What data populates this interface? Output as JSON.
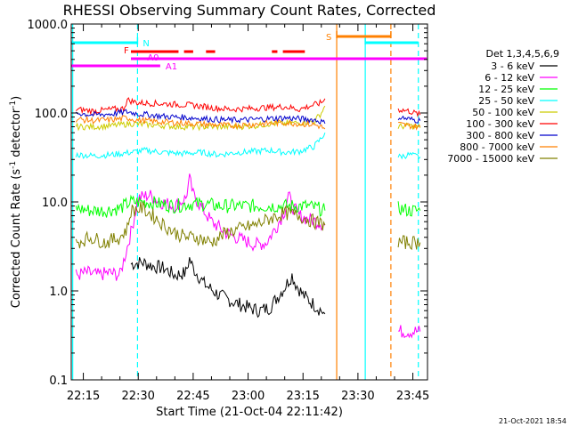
{
  "chart_data": {
    "type": "line",
    "title": "RHESSI Observing Summary Count Rates, Corrected",
    "xlabel": "Start Time (21-Oct-04 22:11:42)",
    "ylabel_main": "Corrected Count Rate (s",
    "ylabel_sup": "-1",
    "ylabel_end": " detector",
    "ylabel_tail": ")",
    "yscale": "log",
    "xlim_min": [
      11.7,
      109.0
    ],
    "ylim": [
      0.1,
      1000
    ],
    "x_ticks": [
      {
        "t": 15,
        "label": "22:15"
      },
      {
        "t": 30,
        "label": "22:30"
      },
      {
        "t": 45,
        "label": "22:45"
      },
      {
        "t": 60,
        "label": "23:00"
      },
      {
        "t": 75,
        "label": "23:15"
      },
      {
        "t": 90,
        "label": "23:30"
      },
      {
        "t": 105,
        "label": "23:45"
      }
    ],
    "y_ticks": [
      {
        "v": 1000,
        "label": "1000.0"
      },
      {
        "v": 100,
        "label": "100.0"
      },
      {
        "v": 10,
        "label": "10.0"
      },
      {
        "v": 1,
        "label": "1.0"
      },
      {
        "v": 0.1,
        "label": "0.1"
      }
    ],
    "legend_title": "Det 1,3,4,5,6,9",
    "series": [
      {
        "name": "3 - 6 keV",
        "color": "#000000",
        "points": [
          [
            28,
            2.0
          ],
          [
            31,
            2.1
          ],
          [
            34,
            1.9
          ],
          [
            37,
            1.8
          ],
          [
            40,
            1.5
          ],
          [
            43,
            1.6
          ],
          [
            44,
            2.3
          ],
          [
            45,
            1.8
          ],
          [
            48,
            1.2
          ],
          [
            52,
            0.9
          ],
          [
            56,
            0.75
          ],
          [
            60,
            0.65
          ],
          [
            63,
            0.6
          ],
          [
            66,
            0.65
          ],
          [
            68,
            0.85
          ],
          [
            70,
            1.1
          ],
          [
            72,
            1.5
          ],
          [
            73,
            1.2
          ],
          [
            75,
            0.9
          ],
          [
            78,
            0.7
          ],
          [
            80,
            0.6
          ],
          [
            81,
            0.55
          ]
        ]
      },
      {
        "name": "6 - 12 keV",
        "color": "#ff00ff",
        "points": [
          [
            13,
            1.5
          ],
          [
            16,
            1.6
          ],
          [
            19,
            1.5
          ],
          [
            22,
            1.6
          ],
          [
            25,
            1.5
          ],
          [
            28,
            4.5
          ],
          [
            30,
            11.0
          ],
          [
            33,
            12.0
          ],
          [
            36,
            10.0
          ],
          [
            40,
            9.0
          ],
          [
            43,
            11.0
          ],
          [
            44,
            18.0
          ],
          [
            45,
            12.0
          ],
          [
            47,
            9.0
          ],
          [
            50,
            6.0
          ],
          [
            54,
            4.5
          ],
          [
            58,
            3.8
          ],
          [
            62,
            3.3
          ],
          [
            65,
            3.5
          ],
          [
            68,
            5.5
          ],
          [
            70,
            8.0
          ],
          [
            71,
            12.0
          ],
          [
            72,
            9.0
          ],
          [
            74,
            7.0
          ],
          [
            76,
            6.5
          ],
          [
            79,
            6.0
          ],
          [
            81,
            5.5
          ],
          [
            101,
            0.35
          ],
          [
            104,
            0.35
          ],
          [
            107,
            0.35
          ]
        ]
      },
      {
        "name": "12 - 25 keV",
        "color": "#00ff00",
        "points": [
          [
            13,
            8.5
          ],
          [
            17,
            8.0
          ],
          [
            21,
            8.0
          ],
          [
            25,
            8.5
          ],
          [
            28,
            10.0
          ],
          [
            32,
            10.0
          ],
          [
            36,
            9.5
          ],
          [
            40,
            9.0
          ],
          [
            44,
            9.5
          ],
          [
            48,
            9.5
          ],
          [
            52,
            9.0
          ],
          [
            56,
            9.0
          ],
          [
            60,
            9.0
          ],
          [
            64,
            9.0
          ],
          [
            68,
            9.0
          ],
          [
            72,
            9.0
          ],
          [
            76,
            9.0
          ],
          [
            79,
            8.5
          ],
          [
            81,
            8.0
          ],
          [
            101,
            8.5
          ],
          [
            104,
            8.0
          ],
          [
            107,
            8.0
          ]
        ]
      },
      {
        "name": "25 - 50 keV",
        "color": "#00ffff",
        "points": [
          [
            13,
            34
          ],
          [
            18,
            33
          ],
          [
            23,
            34
          ],
          [
            28,
            36
          ],
          [
            32,
            38
          ],
          [
            37,
            36
          ],
          [
            42,
            35
          ],
          [
            47,
            36
          ],
          [
            52,
            34
          ],
          [
            57,
            36
          ],
          [
            62,
            37
          ],
          [
            66,
            38
          ],
          [
            70,
            36
          ],
          [
            74,
            37
          ],
          [
            78,
            42
          ],
          [
            80,
            52
          ],
          [
            81,
            60
          ],
          [
            101,
            32
          ],
          [
            104,
            34
          ],
          [
            107,
            32
          ]
        ]
      },
      {
        "name": "50 - 100 keV",
        "color": "#cccc00",
        "points": [
          [
            13,
            70
          ],
          [
            18,
            70
          ],
          [
            23,
            72
          ],
          [
            28,
            76
          ],
          [
            32,
            74
          ],
          [
            37,
            72
          ],
          [
            42,
            70
          ],
          [
            47,
            70
          ],
          [
            52,
            70
          ],
          [
            57,
            70
          ],
          [
            62,
            72
          ],
          [
            66,
            76
          ],
          [
            70,
            76
          ],
          [
            74,
            78
          ],
          [
            78,
            80
          ],
          [
            80,
            100
          ],
          [
            81,
            120
          ],
          [
            101,
            70
          ],
          [
            104,
            72
          ],
          [
            107,
            68
          ]
        ]
      },
      {
        "name": "100 - 300 keV",
        "color": "#ff0000",
        "points": [
          [
            13,
            110
          ],
          [
            18,
            105
          ],
          [
            23,
            110
          ],
          [
            26,
            112
          ],
          [
            27,
            140
          ],
          [
            30,
            130
          ],
          [
            35,
            128
          ],
          [
            40,
            125
          ],
          [
            45,
            122
          ],
          [
            50,
            115
          ],
          [
            55,
            110
          ],
          [
            60,
            112
          ],
          [
            65,
            115
          ],
          [
            70,
            118
          ],
          [
            74,
            110
          ],
          [
            77,
            120
          ],
          [
            80,
            130
          ],
          [
            81,
            145
          ],
          [
            101,
            110
          ],
          [
            104,
            105
          ],
          [
            107,
            95
          ]
        ]
      },
      {
        "name": "300 - 800 keV",
        "color": "#0000cc",
        "points": [
          [
            13,
            100
          ],
          [
            18,
            95
          ],
          [
            23,
            98
          ],
          [
            27,
            103
          ],
          [
            30,
            98
          ],
          [
            35,
            93
          ],
          [
            40,
            90
          ],
          [
            45,
            88
          ],
          [
            50,
            85
          ],
          [
            55,
            83
          ],
          [
            60,
            84
          ],
          [
            65,
            86
          ],
          [
            70,
            88
          ],
          [
            74,
            86
          ],
          [
            78,
            84
          ],
          [
            80,
            80
          ],
          [
            81,
            76
          ],
          [
            101,
            90
          ],
          [
            104,
            85
          ],
          [
            107,
            82
          ]
        ]
      },
      {
        "name": "800 - 7000 keV",
        "color": "#ff8000",
        "points": [
          [
            13,
            85
          ],
          [
            18,
            82
          ],
          [
            23,
            84
          ],
          [
            27,
            88
          ],
          [
            30,
            83
          ],
          [
            35,
            80
          ],
          [
            40,
            78
          ],
          [
            45,
            76
          ],
          [
            50,
            74
          ],
          [
            55,
            72
          ],
          [
            60,
            74
          ],
          [
            65,
            76
          ],
          [
            70,
            78
          ],
          [
            74,
            76
          ],
          [
            78,
            74
          ],
          [
            80,
            70
          ],
          [
            81,
            66
          ],
          [
            101,
            75
          ],
          [
            104,
            72
          ],
          [
            107,
            70
          ]
        ]
      },
      {
        "name": "7000 - 15000 keV",
        "color": "#808000",
        "points": [
          [
            13,
            3.5
          ],
          [
            17,
            4.0
          ],
          [
            21,
            3.5
          ],
          [
            25,
            4.0
          ],
          [
            27,
            5.0
          ],
          [
            28,
            8.0
          ],
          [
            31,
            8.5
          ],
          [
            34,
            7.0
          ],
          [
            37,
            5.5
          ],
          [
            40,
            4.5
          ],
          [
            43,
            4.0
          ],
          [
            46,
            4.0
          ],
          [
            50,
            3.5
          ],
          [
            54,
            4.5
          ],
          [
            58,
            5.0
          ],
          [
            62,
            5.5
          ],
          [
            66,
            6.5
          ],
          [
            70,
            7.5
          ],
          [
            74,
            7.0
          ],
          [
            78,
            6.0
          ],
          [
            81,
            5.5
          ],
          [
            101,
            3.5
          ],
          [
            104,
            3.5
          ],
          [
            107,
            3.5
          ]
        ]
      }
    ],
    "flags": [
      {
        "label": "N",
        "color": "#00ffff",
        "segments": [
          [
            11.7,
            29.8
          ],
          [
            92.0,
            106.5
          ]
        ],
        "ticks": [
          29.8,
          92.0
        ]
      },
      {
        "label": "F",
        "color": "#ff0000",
        "segments": [
          [
            28.0,
            41.0
          ],
          [
            42.5,
            45.0
          ],
          [
            48.5,
            51.0
          ],
          [
            66.5,
            68.0
          ],
          [
            69.5,
            75.5
          ]
        ]
      },
      {
        "label": "A0",
        "color": "#ff00ff",
        "segments": [
          [
            28.0,
            108.8
          ]
        ]
      },
      {
        "label": "A1",
        "color": "#ff00ff",
        "segments": [
          [
            11.7,
            36.0
          ]
        ]
      },
      {
        "label": "S",
        "color": "#ff8000",
        "segments": [
          [
            84.2,
            99.0
          ]
        ],
        "ticks": [
          84.2,
          99.0
        ]
      }
    ],
    "vertical_markers": [
      {
        "t": 12.1,
        "color": "#00ffff",
        "style": "solid"
      },
      {
        "t": 29.8,
        "color": "#00ffff",
        "style": "dashed"
      },
      {
        "t": 84.2,
        "color": "#ff8000",
        "style": "solid"
      },
      {
        "t": 92.0,
        "color": "#00ffff",
        "style": "solid"
      },
      {
        "t": 99.0,
        "color": "#ff8000",
        "style": "dashed"
      },
      {
        "t": 106.5,
        "color": "#00ffff",
        "style": "dashed"
      }
    ]
  },
  "timestamp": "21-Oct-2021 18:54"
}
